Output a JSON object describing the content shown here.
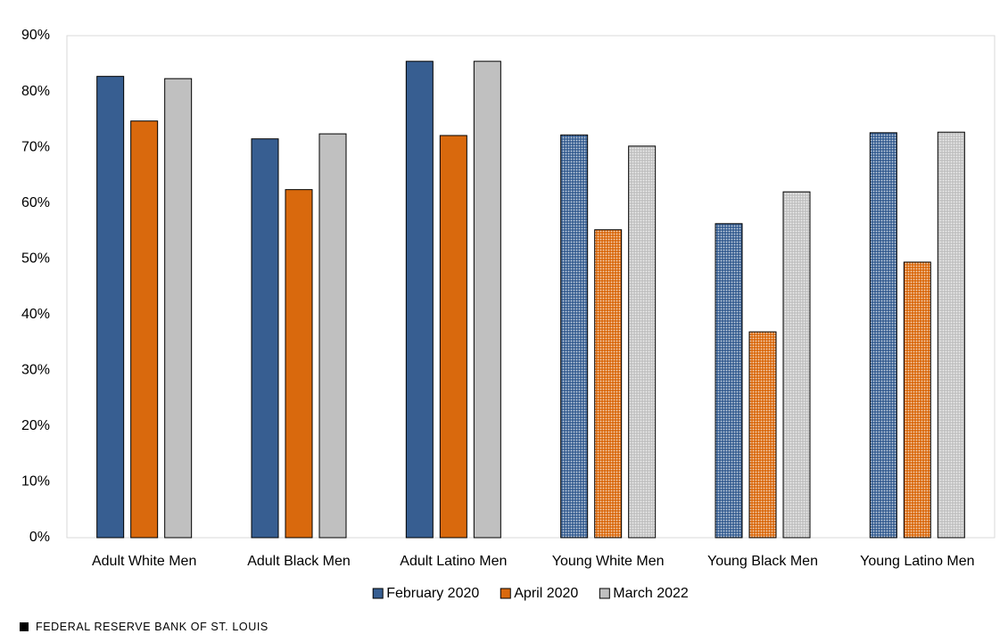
{
  "chart_data": {
    "type": "bar",
    "categories": [
      "Adult White Men",
      "Adult Black Men",
      "Adult Latino Men",
      "Young White Men",
      "Young Black Men",
      "Young Latino Men"
    ],
    "patterned": [
      false,
      false,
      false,
      true,
      true,
      true
    ],
    "series": [
      {
        "name": "February 2020",
        "color": "#375e91",
        "values": [
          82.7,
          71.5,
          85.4,
          72.2,
          56.3,
          72.6
        ]
      },
      {
        "name": "April 2020",
        "color": "#d9690d",
        "values": [
          74.7,
          62.4,
          72.1,
          55.2,
          36.9,
          49.4
        ]
      },
      {
        "name": "March 2022",
        "color": "#c0c0c0",
        "values": [
          82.3,
          72.4,
          85.4,
          70.2,
          62.0,
          72.7
        ]
      }
    ],
    "ylim": [
      0,
      90
    ],
    "yticks": [
      {
        "value": 0,
        "label": "0%"
      },
      {
        "value": 10,
        "label": "10%"
      },
      {
        "value": 20,
        "label": "20%"
      },
      {
        "value": 30,
        "label": "30%"
      },
      {
        "value": 40,
        "label": "40%"
      },
      {
        "value": 50,
        "label": "50%"
      },
      {
        "value": 60,
        "label": "60%"
      },
      {
        "value": 70,
        "label": "70%"
      },
      {
        "value": 80,
        "label": "80%"
      },
      {
        "value": 90,
        "label": "90%"
      }
    ],
    "grid": false,
    "legend": "bottom",
    "footer": "FEDERAL RESERVE BANK OF ST. LOUIS"
  }
}
